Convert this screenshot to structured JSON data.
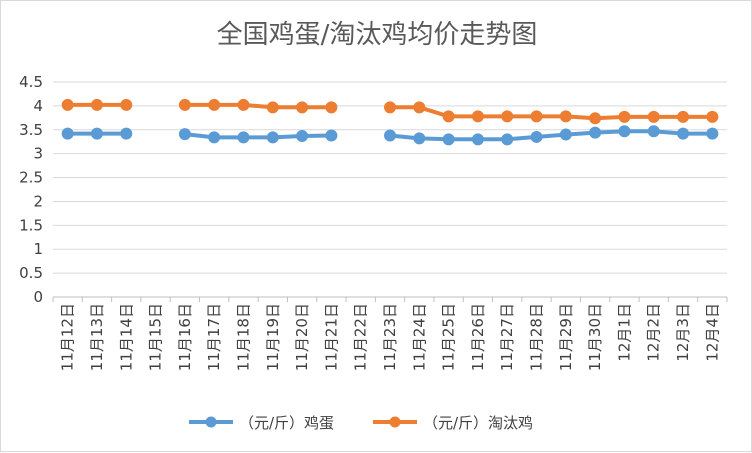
{
  "chart_data": {
    "type": "line",
    "title": "全国鸡蛋/淘汰鸡均价走势图",
    "xlabel": "",
    "ylabel": "",
    "ylim": [
      0,
      4.5
    ],
    "yticks": [
      "0",
      "0.5",
      "1",
      "1.5",
      "2",
      "2.5",
      "3",
      "3.5",
      "4",
      "4.5"
    ],
    "grid": true,
    "legend_position": "bottom",
    "categories": [
      "11月12日",
      "11月13日",
      "11月14日",
      "11月15日",
      "11月16日",
      "11月17日",
      "11月18日",
      "11月19日",
      "11月20日",
      "11月21日",
      "11月22日",
      "11月23日",
      "11月24日",
      "11月25日",
      "11月26日",
      "11月27日",
      "11月28日",
      "11月29日",
      "11月30日",
      "12月1日",
      "12月2日",
      "12月3日",
      "12月4日"
    ],
    "series": [
      {
        "name": "（元/斤）鸡蛋",
        "color": "#5b9bd5",
        "values": [
          3.42,
          3.42,
          3.42,
          null,
          3.41,
          3.34,
          3.34,
          3.34,
          3.37,
          3.38,
          null,
          3.38,
          3.32,
          3.3,
          3.3,
          3.3,
          3.35,
          3.4,
          3.44,
          3.47,
          3.47,
          3.42,
          3.42
        ]
      },
      {
        "name": "（元/斤）淘汰鸡",
        "color": "#ed7d31",
        "values": [
          4.02,
          4.02,
          4.02,
          null,
          4.02,
          4.02,
          4.02,
          3.97,
          3.97,
          3.97,
          null,
          3.97,
          3.97,
          3.78,
          3.78,
          3.78,
          3.78,
          3.78,
          3.74,
          3.77,
          3.77,
          3.77,
          3.77
        ]
      }
    ]
  }
}
